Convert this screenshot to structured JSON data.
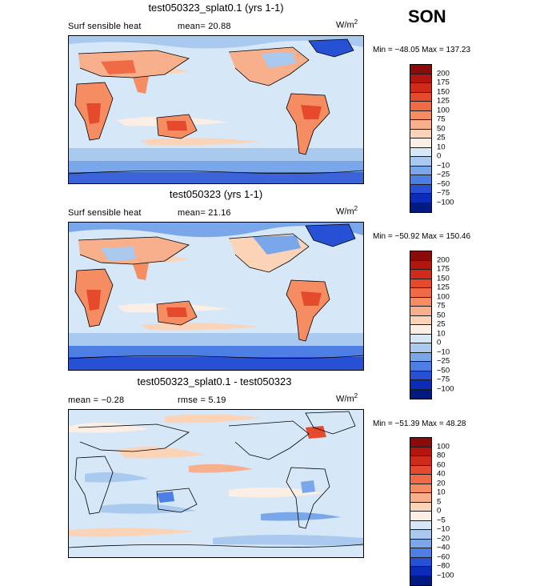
{
  "season": "SON",
  "colors": {
    "land_warm": "#f4a582",
    "land_hot": "#e8734f",
    "ocean_neutral": "#d6e7f7",
    "ocean_cool": "#a9c9ef",
    "ice_cold": "#3a64d8",
    "coast": "#000000"
  },
  "panels": [
    {
      "title": "test050323_splat0.1 (yrs 1-1)",
      "variable": "Surf sensible heat",
      "stat1": "mean=  20.88",
      "stat2": "",
      "units_base": "W/m",
      "units_exp": "2",
      "minmax": "Min = −48.05 Max = 137.23",
      "colorbar_labels": [
        "200",
        "175",
        "150",
        "125",
        "100",
        "75",
        "50",
        "25",
        "10",
        "0",
        "−10",
        "−25",
        "−50",
        "−75",
        "−100"
      ],
      "colorbar_colors": [
        "#8b0a0a",
        "#b2160f",
        "#d02a1a",
        "#e54a2c",
        "#ef6a45",
        "#f58c62",
        "#f8b08c",
        "#fbd3b7",
        "#fbeee4",
        "#d6e7f7",
        "#a9c9ef",
        "#7aa7ea",
        "#4c7ee3",
        "#2651d4",
        "#0a2cb8",
        "#001a80"
      ]
    },
    {
      "title": "test050323 (yrs 1-1)",
      "variable": "Surf sensible heat",
      "stat1": "mean=  21.16",
      "stat2": "",
      "units_base": "W/m",
      "units_exp": "2",
      "minmax": "Min = −50.92 Max = 150.46",
      "colorbar_labels": [
        "200",
        "175",
        "150",
        "125",
        "100",
        "75",
        "50",
        "25",
        "10",
        "0",
        "−10",
        "−25",
        "−50",
        "−75",
        "−100"
      ],
      "colorbar_colors": [
        "#8b0a0a",
        "#b2160f",
        "#d02a1a",
        "#e54a2c",
        "#ef6a45",
        "#f58c62",
        "#f8b08c",
        "#fbd3b7",
        "#fbeee4",
        "#d6e7f7",
        "#a9c9ef",
        "#7aa7ea",
        "#4c7ee3",
        "#2651d4",
        "#0a2cb8",
        "#001a80"
      ]
    },
    {
      "title": "test050323_splat0.1 - test050323",
      "variable": "",
      "stat1": "mean =  −0.28",
      "stat2": "rmse =   5.19",
      "units_base": "W/m",
      "units_exp": "2",
      "minmax": "Min = −51.39 Max =  48.28",
      "colorbar_labels": [
        "100",
        "80",
        "60",
        "40",
        "20",
        "10",
        "5",
        "0",
        "−5",
        "−10",
        "−20",
        "−40",
        "−60",
        "−80",
        "−100"
      ],
      "colorbar_colors": [
        "#8b0a0a",
        "#b2160f",
        "#d02a1a",
        "#e54a2c",
        "#ef6a45",
        "#f58c62",
        "#f8b08c",
        "#fbd3b7",
        "#fbeee4",
        "#d6e7f7",
        "#a9c9ef",
        "#7aa7ea",
        "#4c7ee3",
        "#2651d4",
        "#0a2cb8",
        "#001a80"
      ]
    }
  ],
  "chart_data": [
    {
      "type": "heatmap",
      "title": "test050323_splat0.1 (yrs 1-1)",
      "variable": "Surf sensible heat",
      "mean": 20.88,
      "min": -48.05,
      "max": 137.23,
      "units": "W/m2",
      "color_levels": [
        200,
        175,
        150,
        125,
        100,
        75,
        50,
        25,
        10,
        0,
        -10,
        -25,
        -50,
        -75,
        -100
      ]
    },
    {
      "type": "heatmap",
      "title": "test050323 (yrs 1-1)",
      "variable": "Surf sensible heat",
      "mean": 21.16,
      "min": -50.92,
      "max": 150.46,
      "units": "W/m2",
      "color_levels": [
        200,
        175,
        150,
        125,
        100,
        75,
        50,
        25,
        10,
        0,
        -10,
        -25,
        -50,
        -75,
        -100
      ]
    },
    {
      "type": "heatmap",
      "title": "test050323_splat0.1 - test050323",
      "mean": -0.28,
      "rmse": 5.19,
      "min": -51.39,
      "max": 48.28,
      "units": "W/m2",
      "color_levels": [
        100,
        80,
        60,
        40,
        20,
        10,
        5,
        0,
        -5,
        -10,
        -20,
        -40,
        -60,
        -80,
        -100
      ]
    }
  ]
}
